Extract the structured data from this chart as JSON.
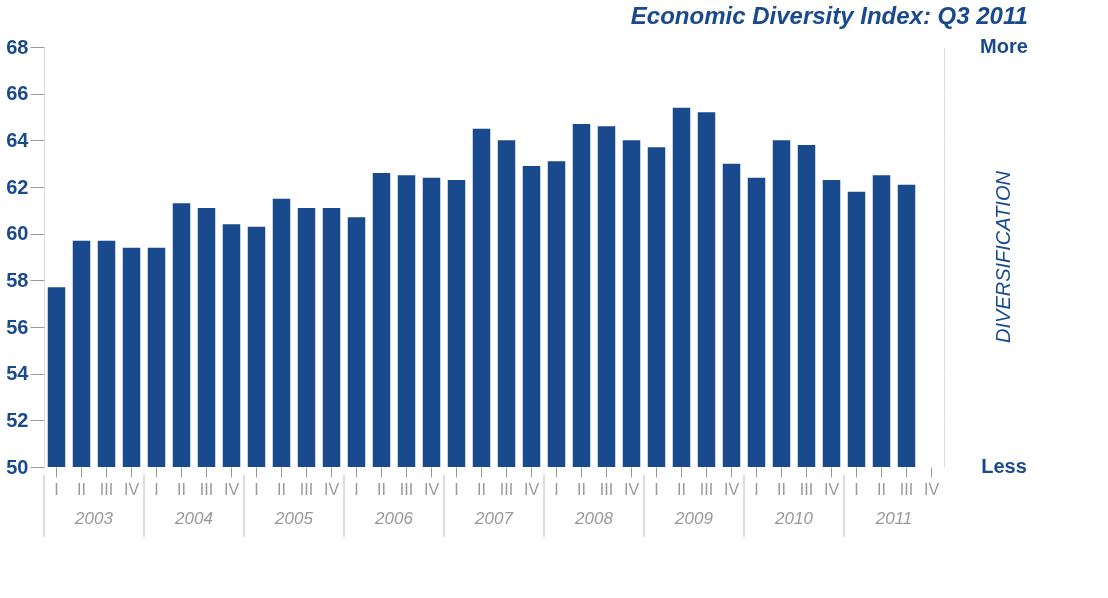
{
  "chart_data": {
    "type": "bar",
    "title": "Economic Diversity Index: Q3 2011",
    "categories": [
      "I",
      "II",
      "III",
      "IV",
      "I",
      "II",
      "III",
      "IV",
      "I",
      "II",
      "III",
      "IV",
      "I",
      "II",
      "III",
      "IV",
      "I",
      "II",
      "III",
      "IV",
      "I",
      "II",
      "III",
      "IV",
      "I",
      "II",
      "III",
      "IV",
      "I",
      "II",
      "III",
      "IV",
      "I",
      "II",
      "III",
      "IV"
    ],
    "values": [
      57.7,
      59.7,
      59.7,
      59.4,
      59.4,
      61.3,
      61.1,
      60.4,
      60.3,
      61.5,
      61.1,
      61.1,
      60.7,
      62.6,
      62.5,
      62.4,
      62.3,
      64.5,
      64.0,
      62.9,
      63.1,
      64.7,
      64.6,
      64.0,
      63.7,
      65.4,
      65.2,
      63.0,
      62.4,
      64.0,
      63.8,
      62.3,
      61.8,
      62.5,
      62.1,
      null
    ],
    "color": "#1a4a8e",
    "ylim": [
      50,
      68
    ],
    "yticks": [
      50,
      52,
      54,
      56,
      58,
      60,
      62,
      64,
      66,
      68
    ],
    "grid": "y",
    "annotations": [
      "2003",
      "2004",
      "2005",
      "2006",
      "2007",
      "2008",
      "2009",
      "2010",
      "2011",
      "More",
      "DIVERSIFICATION",
      "Less"
    ]
  }
}
